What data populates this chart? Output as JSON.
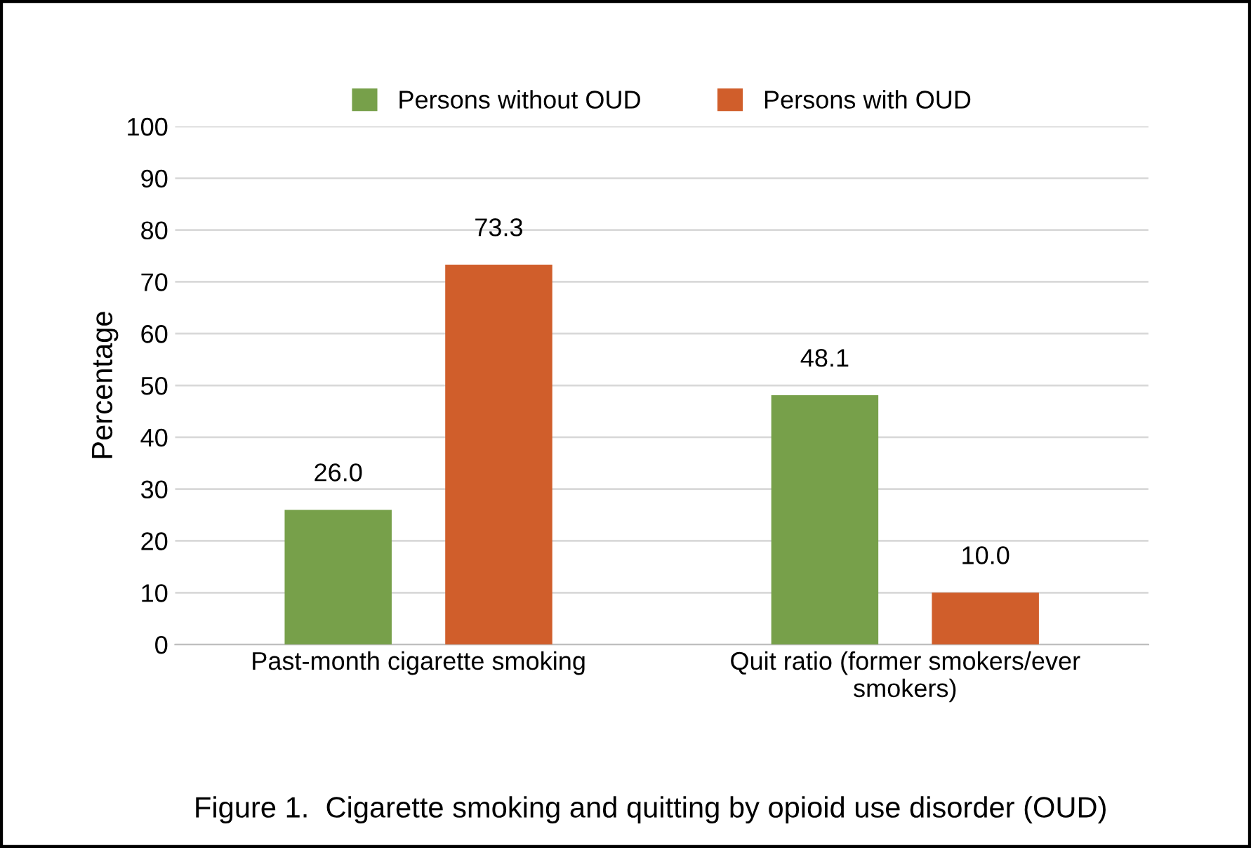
{
  "chart_data": {
    "type": "bar",
    "title": "Figure 1.  Cigarette smoking and quitting by opioid use disorder (OUD)",
    "ylabel": "Percentage",
    "categories": [
      "Past-month cigarette smoking",
      "Quit ratio (former smokers/ever\nsmokers)"
    ],
    "series": [
      {
        "name": "Persons without OUD",
        "color": "#77a04a",
        "values": [
          26.0,
          48.1
        ],
        "value_labels": [
          "26.0",
          "48.1"
        ]
      },
      {
        "name": "Persons with OUD",
        "color": "#d05e2b",
        "values": [
          73.3,
          10.0
        ],
        "value_labels": [
          "73.3",
          "10.0"
        ]
      }
    ],
    "ylim": [
      0,
      100
    ],
    "yticks": [
      0,
      10,
      20,
      30,
      40,
      50,
      60,
      70,
      80,
      90,
      100
    ],
    "grid": "y",
    "legend": "top"
  }
}
